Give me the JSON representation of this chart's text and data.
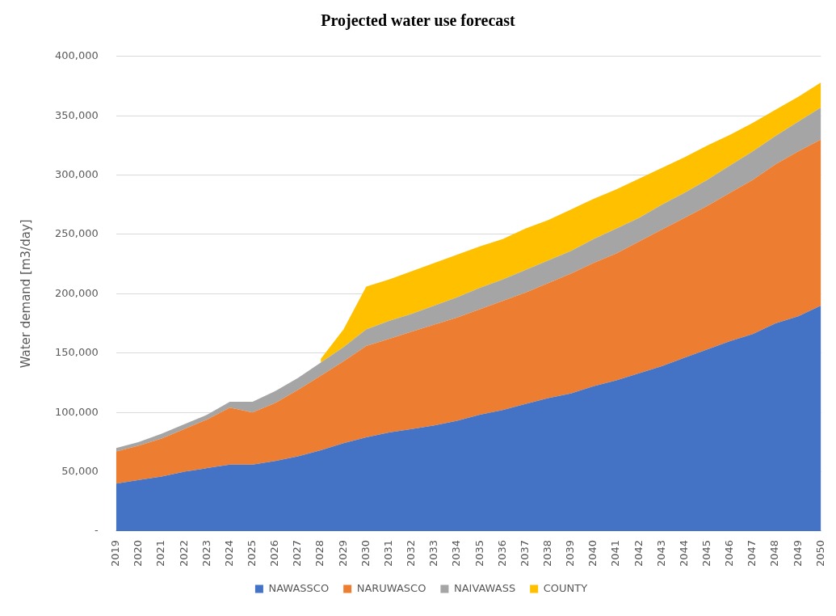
{
  "chart_data": {
    "type": "area",
    "stacked": true,
    "title": "Projected water use forecast",
    "ylabel": "Water demand [m3/day]",
    "categories": [
      "2019",
      "2020",
      "2021",
      "2022",
      "2023",
      "2024",
      "2025",
      "2026",
      "2027",
      "2028",
      "2029",
      "2030",
      "2031",
      "2032",
      "2033",
      "2034",
      "2035",
      "2036",
      "2037",
      "2038",
      "2039",
      "2040",
      "2041",
      "2042",
      "2043",
      "2044",
      "2045",
      "2046",
      "2047",
      "2048",
      "2049",
      "2050"
    ],
    "series": [
      {
        "name": "NAWASSCO",
        "color": "#4472c4",
        "values": [
          40000,
          43000,
          46000,
          50000,
          53000,
          56000,
          56000,
          59000,
          63000,
          68000,
          74000,
          79000,
          83000,
          86000,
          89000,
          93000,
          98000,
          102000,
          107000,
          112000,
          116000,
          122000,
          127000,
          133000,
          139000,
          146000,
          153000,
          160000,
          166000,
          175000,
          181000,
          190000
        ]
      },
      {
        "name": "NARUWASCO",
        "color": "#ed7d31",
        "values": [
          27000,
          29000,
          32000,
          36000,
          41000,
          48000,
          44000,
          49000,
          56000,
          63000,
          69000,
          77000,
          79000,
          82000,
          85000,
          87000,
          89000,
          92000,
          94000,
          97000,
          101000,
          104000,
          107000,
          111000,
          115000,
          118000,
          121000,
          125000,
          130000,
          134000,
          139000,
          140000
        ]
      },
      {
        "name": "NAIVAWASS",
        "color": "#a5a5a5",
        "values": [
          3000,
          3000,
          4000,
          4000,
          4000,
          5000,
          9000,
          10000,
          10000,
          11000,
          12000,
          14000,
          15000,
          15000,
          16000,
          17000,
          18000,
          18000,
          19000,
          19000,
          19000,
          20000,
          21000,
          20000,
          21000,
          21000,
          22000,
          23000,
          24000,
          24000,
          25000,
          27000
        ]
      },
      {
        "name": "COUNTY",
        "color": "#ffc000",
        "values": [
          null,
          null,
          null,
          null,
          null,
          null,
          null,
          null,
          null,
          3000,
          15000,
          36000,
          35000,
          36000,
          36000,
          36000,
          35000,
          34000,
          35000,
          34000,
          35000,
          34000,
          33000,
          33000,
          31000,
          30000,
          29000,
          26000,
          24000,
          22000,
          21000,
          21000
        ]
      }
    ],
    "ylim": [
      0,
      400000
    ],
    "yticks": [
      {
        "value": 0,
        "label": "-"
      },
      {
        "value": 50000,
        "label": "50,000"
      },
      {
        "value": 100000,
        "label": "100,000"
      },
      {
        "value": 150000,
        "label": "150,000"
      },
      {
        "value": 200000,
        "label": "200,000"
      },
      {
        "value": 250000,
        "label": "250,000"
      },
      {
        "value": 300000,
        "label": "300,000"
      },
      {
        "value": 350000,
        "label": "350,000"
      },
      {
        "value": 400000,
        "label": "400,000"
      }
    ],
    "grid": "y",
    "legend": "bottom"
  }
}
